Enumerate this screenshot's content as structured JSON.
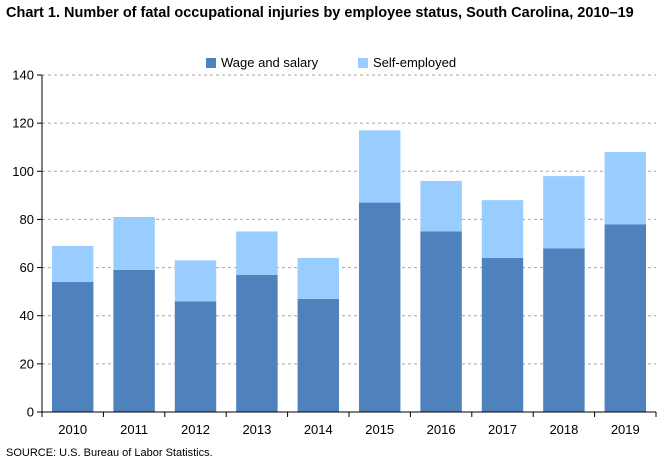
{
  "title": "Chart 1. Number of fatal occupational injuries by employee status, South Carolina, 2010–19",
  "source": "SOURCE: U.S. Bureau of Labor Statistics.",
  "chart_data": {
    "type": "bar",
    "stacked": true,
    "categories": [
      "2010",
      "2011",
      "2012",
      "2013",
      "2014",
      "2015",
      "2016",
      "2017",
      "2018",
      "2019"
    ],
    "series": [
      {
        "name": "Wage and salary",
        "color": "#4f81bd",
        "values": [
          54,
          59,
          46,
          57,
          47,
          87,
          75,
          64,
          68,
          78
        ]
      },
      {
        "name": "Self-employed",
        "color": "#99ccff",
        "values": [
          15,
          22,
          17,
          18,
          17,
          30,
          21,
          24,
          30,
          30
        ]
      }
    ],
    "ylim": [
      0,
      140
    ],
    "yticks": [
      "0",
      "20",
      "40",
      "60",
      "80",
      "100",
      "120",
      "140"
    ],
    "grid": true,
    "legend_position": "top-center",
    "xlabel": "",
    "ylabel": ""
  }
}
